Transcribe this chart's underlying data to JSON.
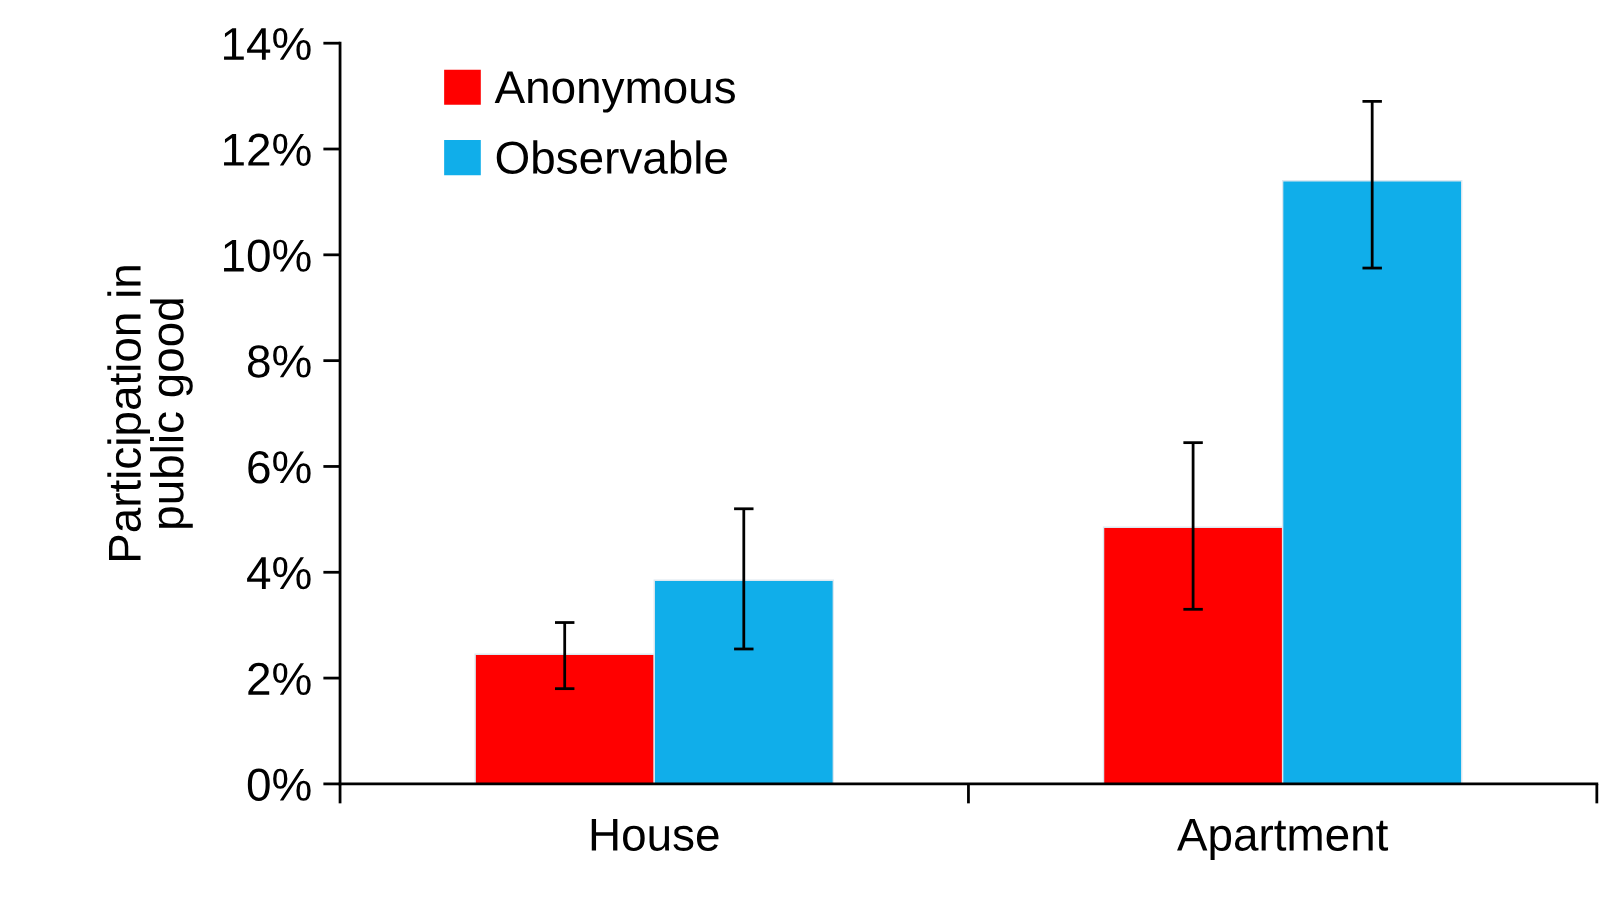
{
  "chart_data": {
    "type": "bar",
    "ylabel": "Participation in\npublic good",
    "categories": [
      "House",
      "Apartment"
    ],
    "series": [
      {
        "name": "Anonymous",
        "color": "#ff0000",
        "values": [
          2.45,
          4.85
        ],
        "errors": [
          [
            1.8,
            3.05
          ],
          [
            3.3,
            6.45
          ]
        ]
      },
      {
        "name": "Observable",
        "color": "#10aeea",
        "values": [
          3.85,
          11.4
        ],
        "errors": [
          [
            2.55,
            5.2
          ],
          [
            9.75,
            12.9
          ]
        ]
      }
    ],
    "ylim": [
      0,
      14
    ],
    "yticks": [
      {
        "value": 0,
        "label": "0%"
      },
      {
        "value": 2,
        "label": "2%"
      },
      {
        "value": 4,
        "label": "4%"
      },
      {
        "value": 6,
        "label": "6%"
      },
      {
        "value": 8,
        "label": "8%"
      },
      {
        "value": 10,
        "label": "10%"
      },
      {
        "value": 12,
        "label": "12%"
      },
      {
        "value": 14,
        "label": "14%"
      }
    ],
    "grid": false,
    "legend": "top left"
  }
}
